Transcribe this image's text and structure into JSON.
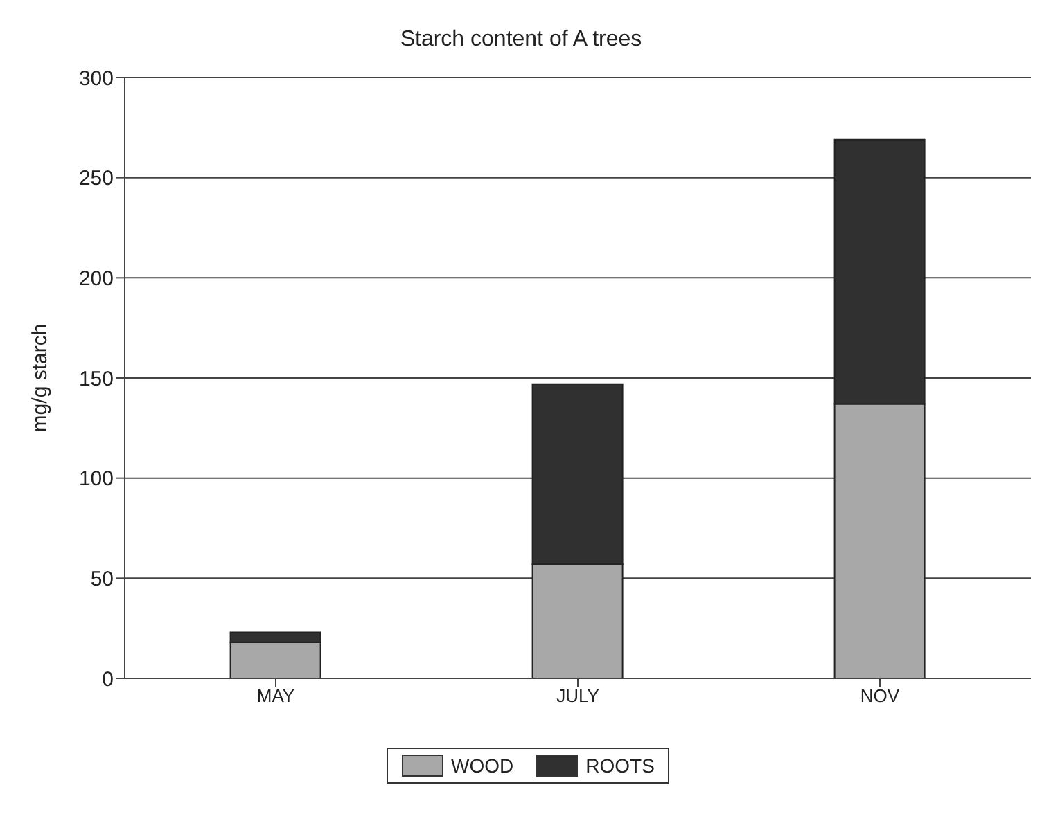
{
  "chart_data": {
    "type": "bar",
    "title": "Starch content of A trees",
    "ylabel": "mg/g starch",
    "categories": [
      "MAY",
      "JULY",
      "NOV"
    ],
    "stacked": true,
    "series": [
      {
        "name": "WOOD",
        "color": "#a8a8a8",
        "values": [
          18,
          57,
          137
        ]
      },
      {
        "name": "ROOTS",
        "color": "#303030",
        "values": [
          5,
          90,
          132
        ]
      }
    ],
    "ylim": [
      0,
      300
    ],
    "yticks": [
      0,
      50,
      100,
      150,
      200,
      250,
      300
    ],
    "grid": "y",
    "legend": "bottom"
  }
}
